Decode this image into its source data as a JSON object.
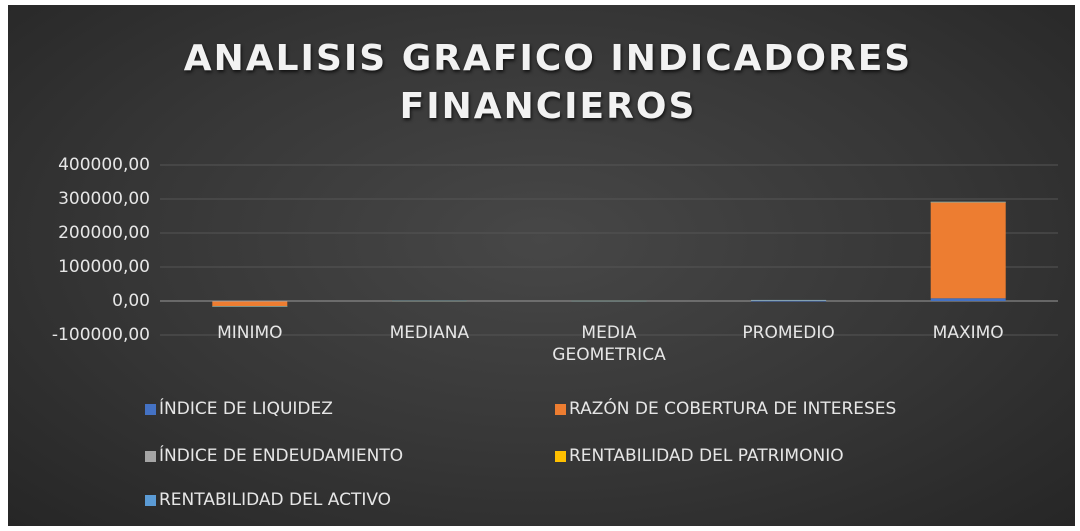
{
  "chart_data": {
    "type": "stacked_bar",
    "title": "ANALISIS GRAFICO INDICADORES FINANCIEROS",
    "categories": [
      "MINIMO",
      "MEDIANA",
      "MEDIA GEOMETRICA",
      "PROMEDIO",
      "MAXIMO"
    ],
    "series": [
      {
        "name": "ÍNDICE DE LIQUIDEZ",
        "color": "#4472c4",
        "values": [
          100,
          50,
          50,
          200,
          8000
        ]
      },
      {
        "name": "RAZÓN DE COBERTURA DE INTERESES",
        "color": "#ed7d31",
        "values": [
          -15000,
          800,
          600,
          1500,
          283000
        ]
      },
      {
        "name": "ÍNDICE DE ENDEUDAMIENTO",
        "color": "#a5a5a5",
        "values": [
          100,
          100,
          100,
          100,
          200
        ]
      },
      {
        "name": "RENTABILIDAD DEL PATRIMONIO",
        "color": "#ffc000",
        "values": [
          -200,
          100,
          100,
          1200,
          500
        ]
      },
      {
        "name": "RENTABILIDAD DEL ACTIVO",
        "color": "#5b9bd5",
        "values": [
          -100,
          50,
          50,
          100,
          300
        ]
      }
    ],
    "ylim": [
      -100000,
      400000
    ],
    "yticks": [
      {
        "value": -100000,
        "label": "-100000,00"
      },
      {
        "value": 0,
        "label": "0,00"
      },
      {
        "value": 100000,
        "label": "100000,00"
      },
      {
        "value": 200000,
        "label": "200000,00"
      },
      {
        "value": 300000,
        "label": "300000,00"
      },
      {
        "value": 400000,
        "label": "400000,00"
      }
    ],
    "grid": true,
    "legend": "bottom"
  }
}
